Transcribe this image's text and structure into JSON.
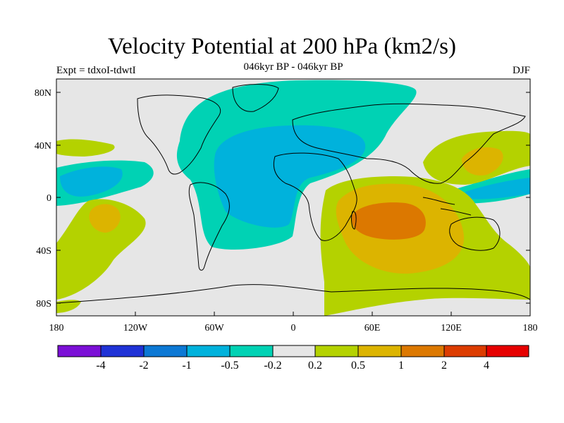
{
  "header": {
    "title": "Velocity Potential at 200 hPa (km2/s)",
    "expt": "Expt = tdxoI-tdwtI",
    "period": "046kyr BP - 046kyr BP",
    "season": "DJF"
  },
  "axes": {
    "lat_ticks": [
      "80N",
      "40N",
      "0",
      "40S",
      "80S"
    ],
    "lon_ticks": [
      "180",
      "120W",
      "60W",
      "0",
      "60E",
      "120E",
      "180"
    ]
  },
  "colorbar": {
    "colors": [
      "#7b0fd6",
      "#1f32d6",
      "#0c78d4",
      "#00b2dc",
      "#00d2b4",
      "#e6e6e6",
      "#b4d200",
      "#dcb400",
      "#dc7800",
      "#dc3c00",
      "#e60000"
    ],
    "labels": [
      "-4",
      "-2",
      "-1",
      "-0.5",
      "-0.2",
      "0.2",
      "0.5",
      "1",
      "2",
      "4"
    ]
  },
  "map": {
    "projection": "cylindrical-equidistant",
    "background_color": "#e6e6e6",
    "regions": [
      {
        "name": "negative-mid",
        "color": "#00d2b4"
      },
      {
        "name": "negative-low",
        "color": "#00b2dc"
      },
      {
        "name": "positive-low",
        "color": "#b4d200"
      },
      {
        "name": "positive-mid",
        "color": "#dcb400"
      },
      {
        "name": "positive-high",
        "color": "#dc7800"
      }
    ]
  }
}
